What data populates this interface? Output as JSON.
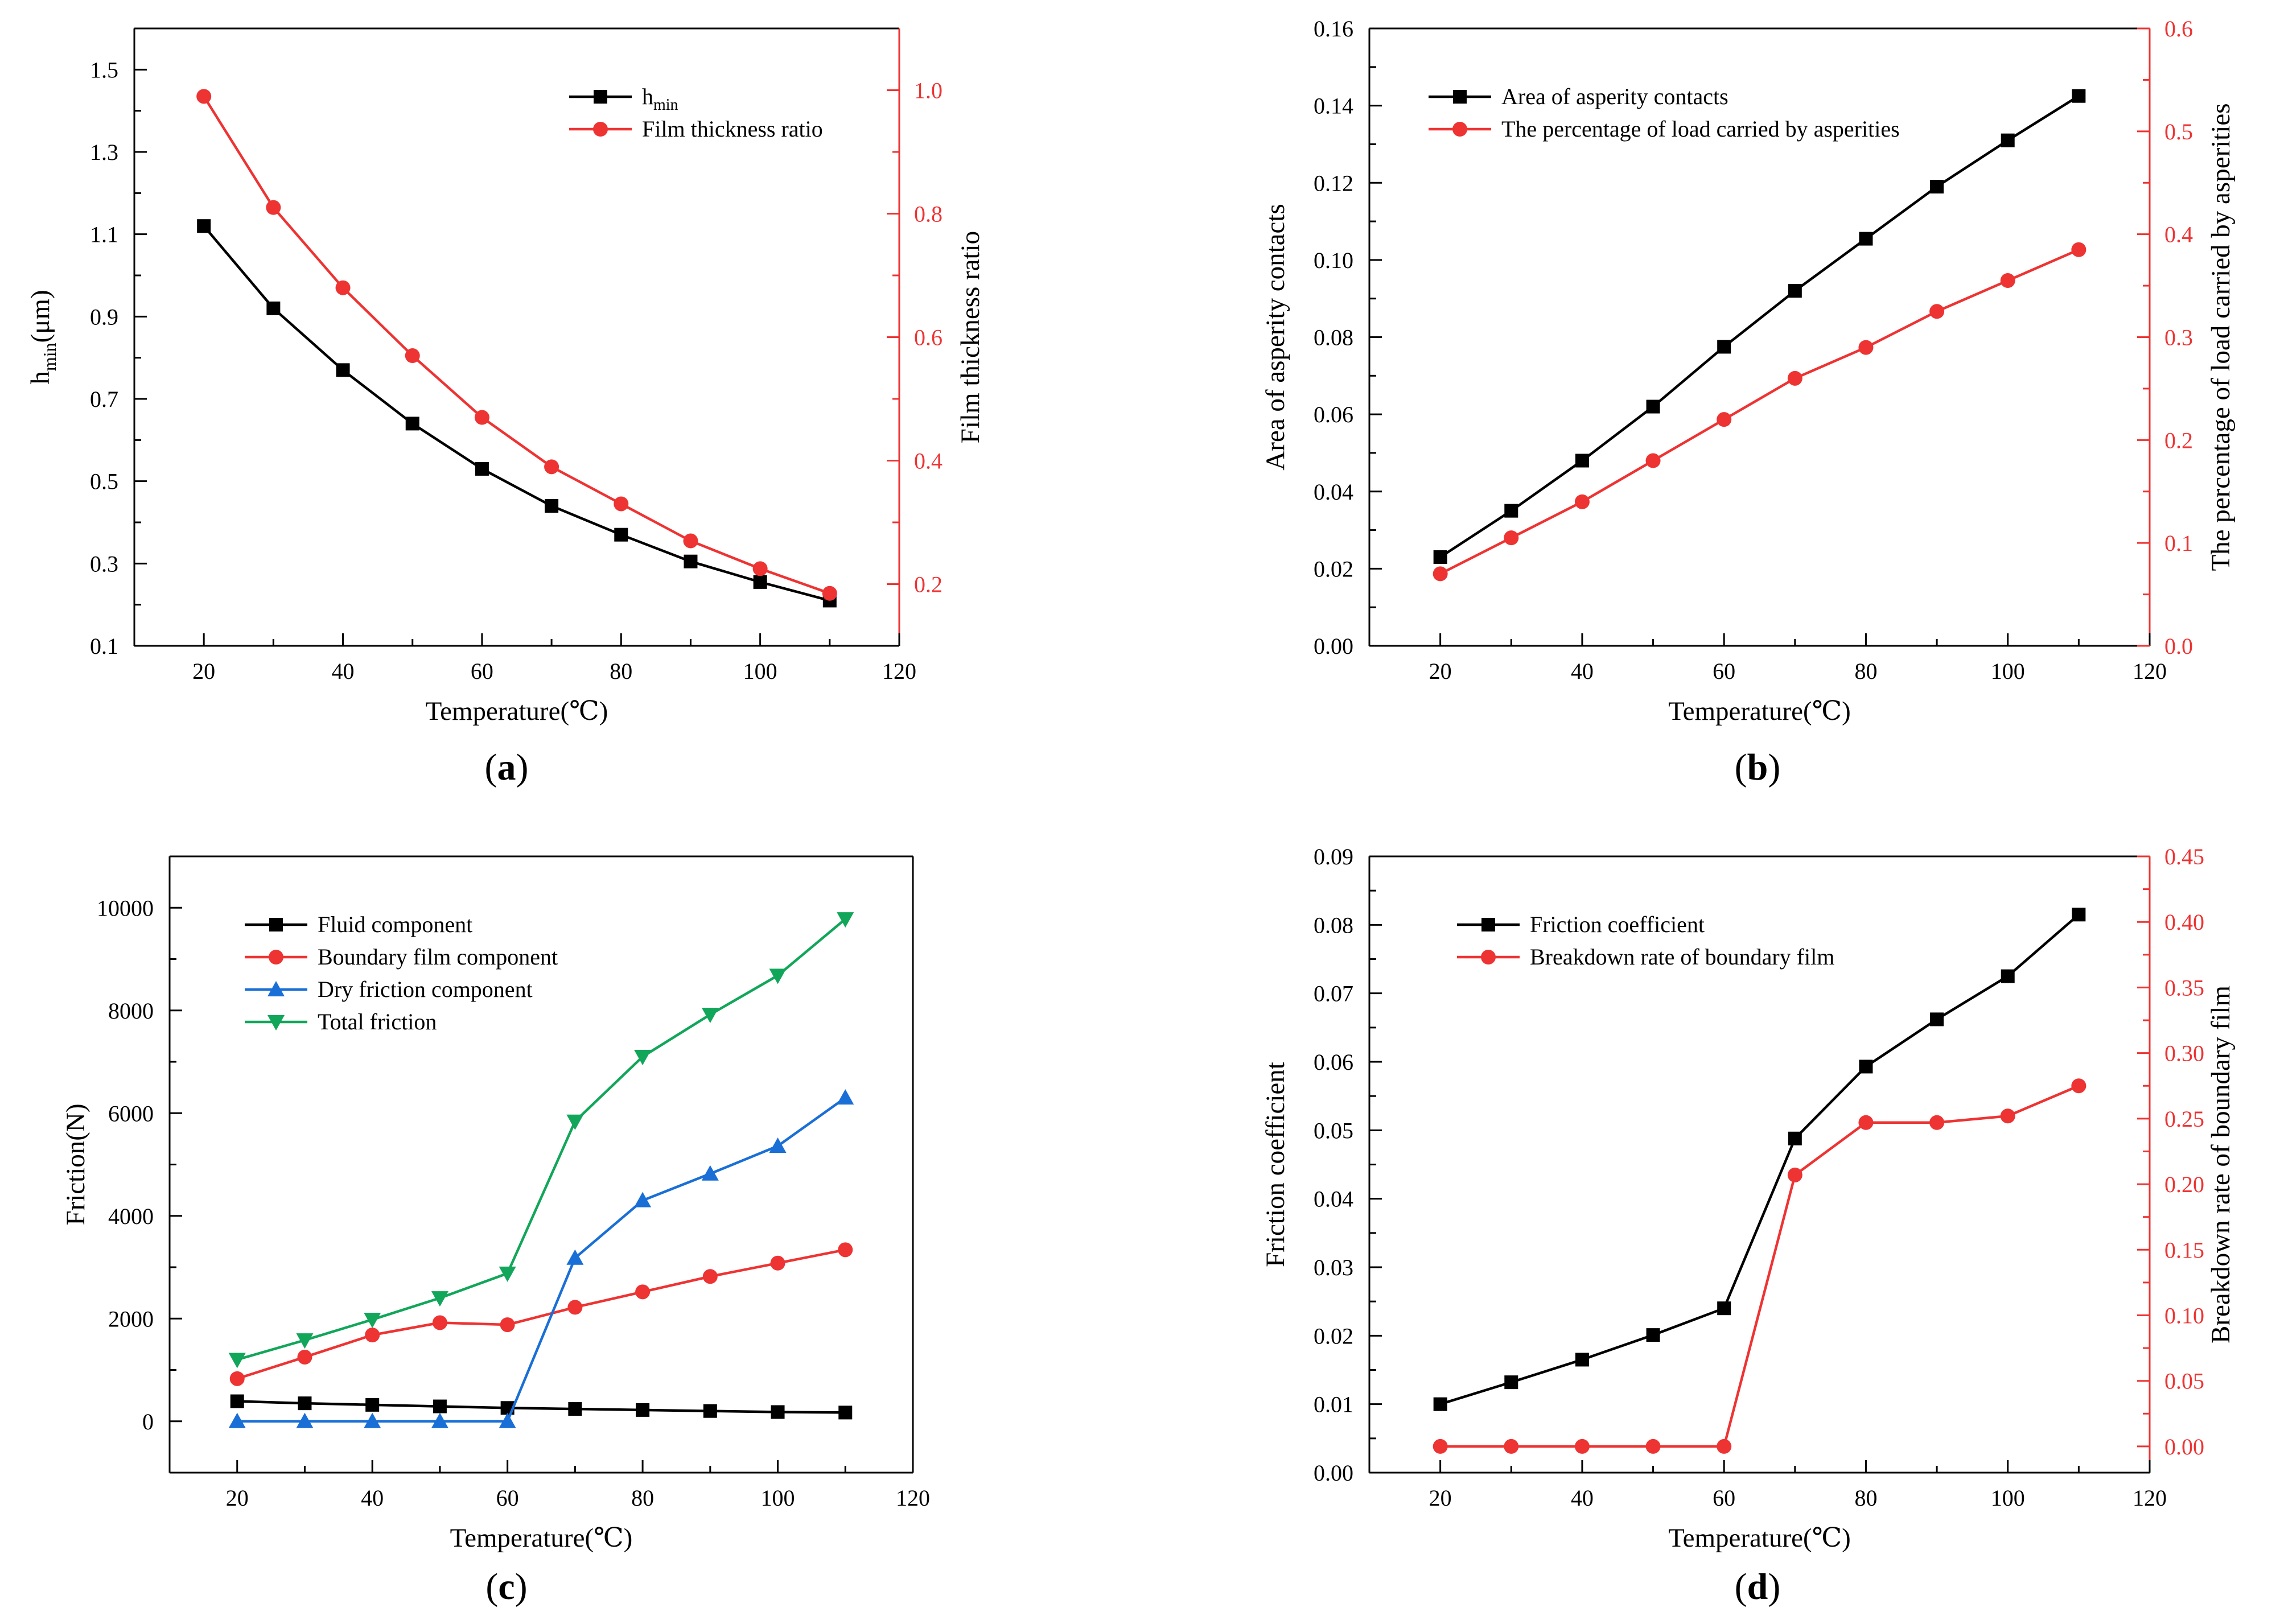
{
  "colors": {
    "black": "#000000",
    "red": "#ee3333",
    "blue": "#1a6fd6",
    "green": "#12a65a"
  },
  "chart_data": [
    {
      "type": "line",
      "panel_label": "a",
      "xlabel": "Temperature(℃)",
      "ylabel": "h",
      "ylabel_sub": "min",
      "ylabel_suffix": "(μm)",
      "y2label": "Film thickness ratio",
      "xlim": [
        10,
        120
      ],
      "ylim": [
        0.1,
        1.6
      ],
      "y2lim": [
        0.1,
        1.1
      ],
      "xticks": [
        20,
        40,
        60,
        80,
        100,
        120
      ],
      "yticks": [
        0.1,
        0.3,
        0.5,
        0.7,
        0.9,
        1.1,
        1.3,
        1.5
      ],
      "y2ticks": [
        0.2,
        0.4,
        0.6,
        0.8,
        1.0
      ],
      "ytick_decimals": 1,
      "y2tick_decimals": 1,
      "legend_position": "top-right",
      "x": [
        20,
        30,
        40,
        50,
        60,
        70,
        80,
        90,
        100,
        110
      ],
      "series": [
        {
          "name": "h",
          "name_sub": "min",
          "axis": "left",
          "color": "black",
          "marker": "square",
          "values": [
            1.12,
            0.92,
            0.77,
            0.64,
            0.53,
            0.44,
            0.37,
            0.305,
            0.255,
            0.21
          ]
        },
        {
          "name": "Film thickness ratio",
          "axis": "right",
          "color": "red",
          "marker": "circle",
          "values": [
            0.99,
            0.81,
            0.68,
            0.57,
            0.47,
            0.39,
            0.33,
            0.27,
            0.225,
            0.185
          ]
        }
      ]
    },
    {
      "type": "line",
      "panel_label": "b",
      "xlabel": "Temperature(℃)",
      "ylabel": "Area of asperity contacts",
      "y2label": "The percentage of load carried by asperities",
      "xlim": [
        10,
        120
      ],
      "ylim": [
        0.0,
        0.16
      ],
      "y2lim": [
        0.0,
        0.6
      ],
      "xticks": [
        20,
        40,
        60,
        80,
        100,
        120
      ],
      "yticks": [
        0.0,
        0.02,
        0.04,
        0.06,
        0.08,
        0.1,
        0.12,
        0.14,
        0.16
      ],
      "y2ticks": [
        0.0,
        0.1,
        0.2,
        0.3,
        0.4,
        0.5,
        0.6
      ],
      "ytick_decimals": 2,
      "y2tick_decimals": 1,
      "legend_position": "top-left",
      "x": [
        20,
        30,
        40,
        50,
        60,
        70,
        80,
        90,
        100,
        110
      ],
      "series": [
        {
          "name": "Area of asperity contacts",
          "axis": "left",
          "color": "black",
          "marker": "square",
          "values": [
            0.023,
            0.035,
            0.048,
            0.062,
            0.0775,
            0.092,
            0.1055,
            0.119,
            0.131,
            0.1425
          ]
        },
        {
          "name": "The percentage of load carried by asperities",
          "axis": "right",
          "color": "red",
          "marker": "circle",
          "values": [
            0.07,
            0.105,
            0.14,
            0.18,
            0.22,
            0.26,
            0.29,
            0.325,
            0.355,
            0.385
          ]
        }
      ]
    },
    {
      "type": "line",
      "panel_label": "c",
      "xlabel": "Temperature(℃)",
      "ylabel": "Friction(N)",
      "y2label": "",
      "xlim": [
        10,
        120
      ],
      "ylim": [
        -1000,
        11000
      ],
      "xticks": [
        20,
        40,
        60,
        80,
        100,
        120
      ],
      "yticks": [
        0,
        2000,
        4000,
        6000,
        8000,
        10000
      ],
      "ytick_decimals": 0,
      "legend_position": "top-left",
      "x": [
        20,
        30,
        40,
        50,
        60,
        70,
        80,
        90,
        100,
        110
      ],
      "series": [
        {
          "name": "Fluid component",
          "axis": "left",
          "color": "black",
          "marker": "square",
          "values": [
            390,
            350,
            320,
            290,
            260,
            240,
            220,
            200,
            180,
            170
          ]
        },
        {
          "name": "Boundary film component",
          "axis": "left",
          "color": "red",
          "marker": "circle",
          "values": [
            830,
            1250,
            1680,
            1920,
            1880,
            2220,
            2520,
            2820,
            3080,
            3340
          ]
        },
        {
          "name": "Dry friction component",
          "axis": "left",
          "color": "blue",
          "marker": "triangle-up",
          "values": [
            0,
            0,
            0,
            0,
            0,
            3180,
            4300,
            4820,
            5360,
            6300
          ]
        },
        {
          "name": "Total friction",
          "axis": "left",
          "color": "green",
          "marker": "triangle-down",
          "values": [
            1200,
            1580,
            1980,
            2400,
            2880,
            5840,
            7100,
            7920,
            8680,
            9780
          ]
        }
      ]
    },
    {
      "type": "line",
      "panel_label": "d",
      "xlabel": "Temperature(℃)",
      "ylabel": "Friction coefficient",
      "y2label": "Breakdown rate of boundary film",
      "xlim": [
        10,
        120
      ],
      "ylim": [
        0.0,
        0.09
      ],
      "y2lim": [
        -0.02,
        0.45
      ],
      "xticks": [
        20,
        40,
        60,
        80,
        100,
        120
      ],
      "yticks": [
        0.0,
        0.01,
        0.02,
        0.03,
        0.04,
        0.05,
        0.06,
        0.07,
        0.08,
        0.09
      ],
      "y2ticks": [
        0.0,
        0.05,
        0.1,
        0.15,
        0.2,
        0.25,
        0.3,
        0.35,
        0.4,
        0.45
      ],
      "ytick_decimals": 2,
      "y2tick_decimals": 2,
      "legend_position": "top-left",
      "x": [
        20,
        30,
        40,
        50,
        60,
        70,
        80,
        90,
        100,
        110
      ],
      "series": [
        {
          "name": "Friction coefficient",
          "axis": "left",
          "color": "black",
          "marker": "square",
          "values": [
            0.01,
            0.0132,
            0.0165,
            0.0201,
            0.024,
            0.0488,
            0.0593,
            0.0662,
            0.0725,
            0.0815
          ]
        },
        {
          "name": "Breakdown rate of boundary film",
          "axis": "right",
          "color": "red",
          "marker": "circle",
          "values": [
            0.0,
            0.0,
            0.0,
            0.0,
            0.0,
            0.207,
            0.247,
            0.247,
            0.252,
            0.275
          ]
        }
      ]
    }
  ]
}
